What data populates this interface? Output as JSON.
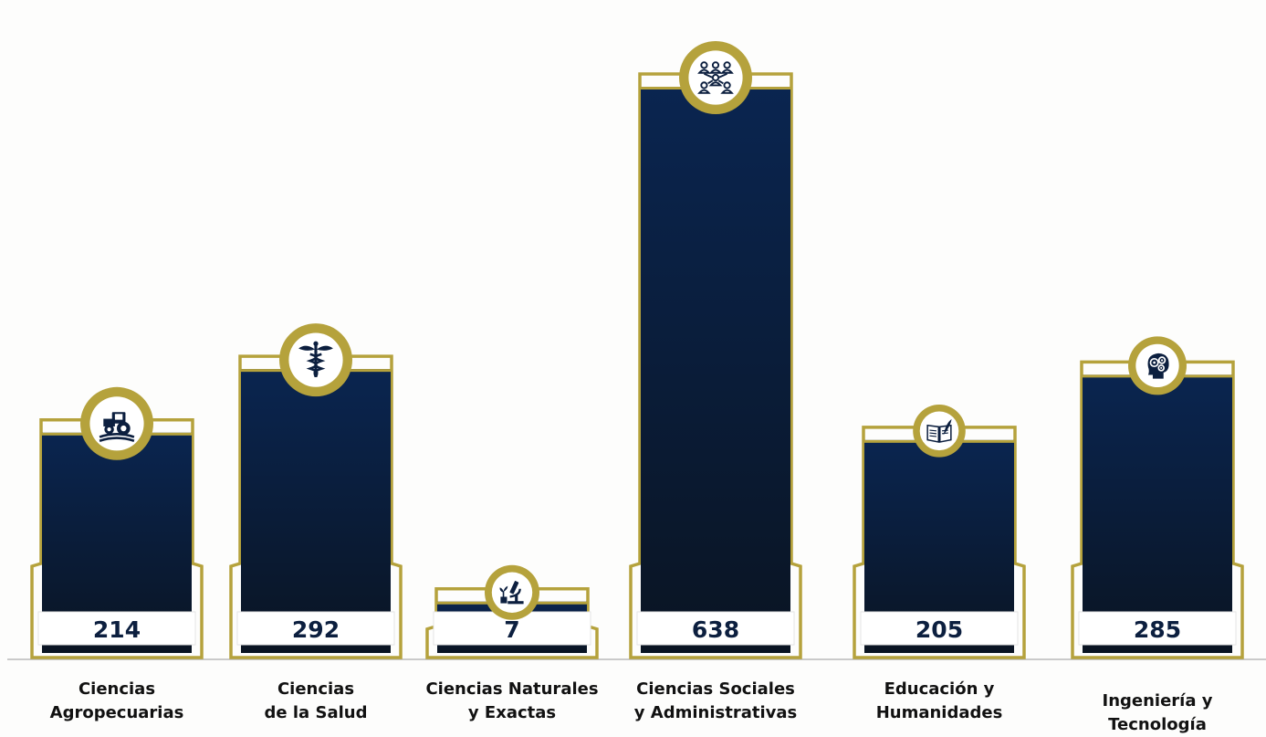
{
  "chart_data": {
    "type": "bar",
    "title": "",
    "xlabel": "",
    "ylabel": "",
    "ylim": [
      0,
      638
    ],
    "grid": false,
    "categories": [
      "Ciencias Agropecuarias",
      "Ciencias de la Salud",
      "Ciencias Naturales y Exactas",
      "Ciencias Sociales y Administrativas",
      "Educación y Humanidades",
      "Ingeniería y Tecnología"
    ],
    "category_lines": [
      [
        "Ciencias",
        "Agropecuarias"
      ],
      [
        "Ciencias",
        "de la Salud"
      ],
      [
        "Ciencias Naturales",
        "y Exactas"
      ],
      [
        "Ciencias Sociales",
        "y Administrativas"
      ],
      [
        "Educación y",
        "Humanidades"
      ],
      [
        "Ingeniería y",
        "Tecnología"
      ]
    ],
    "values": [
      214,
      292,
      7,
      638,
      205,
      285
    ],
    "data_labels": [
      "214",
      "292",
      "7",
      "638",
      "205",
      "285"
    ],
    "icons": [
      "tractor-icon",
      "caduceus-icon",
      "microscope-plant-icon",
      "people-network-icon",
      "book-quill-icon",
      "brain-gears-icon"
    ],
    "colors": {
      "bar_top": "#0a2550",
      "bar_bottom": "#0a1422",
      "frame_gold": "#b5a23c",
      "value_text": "#0c1f3f",
      "baseline": "#b9b9b9"
    }
  }
}
